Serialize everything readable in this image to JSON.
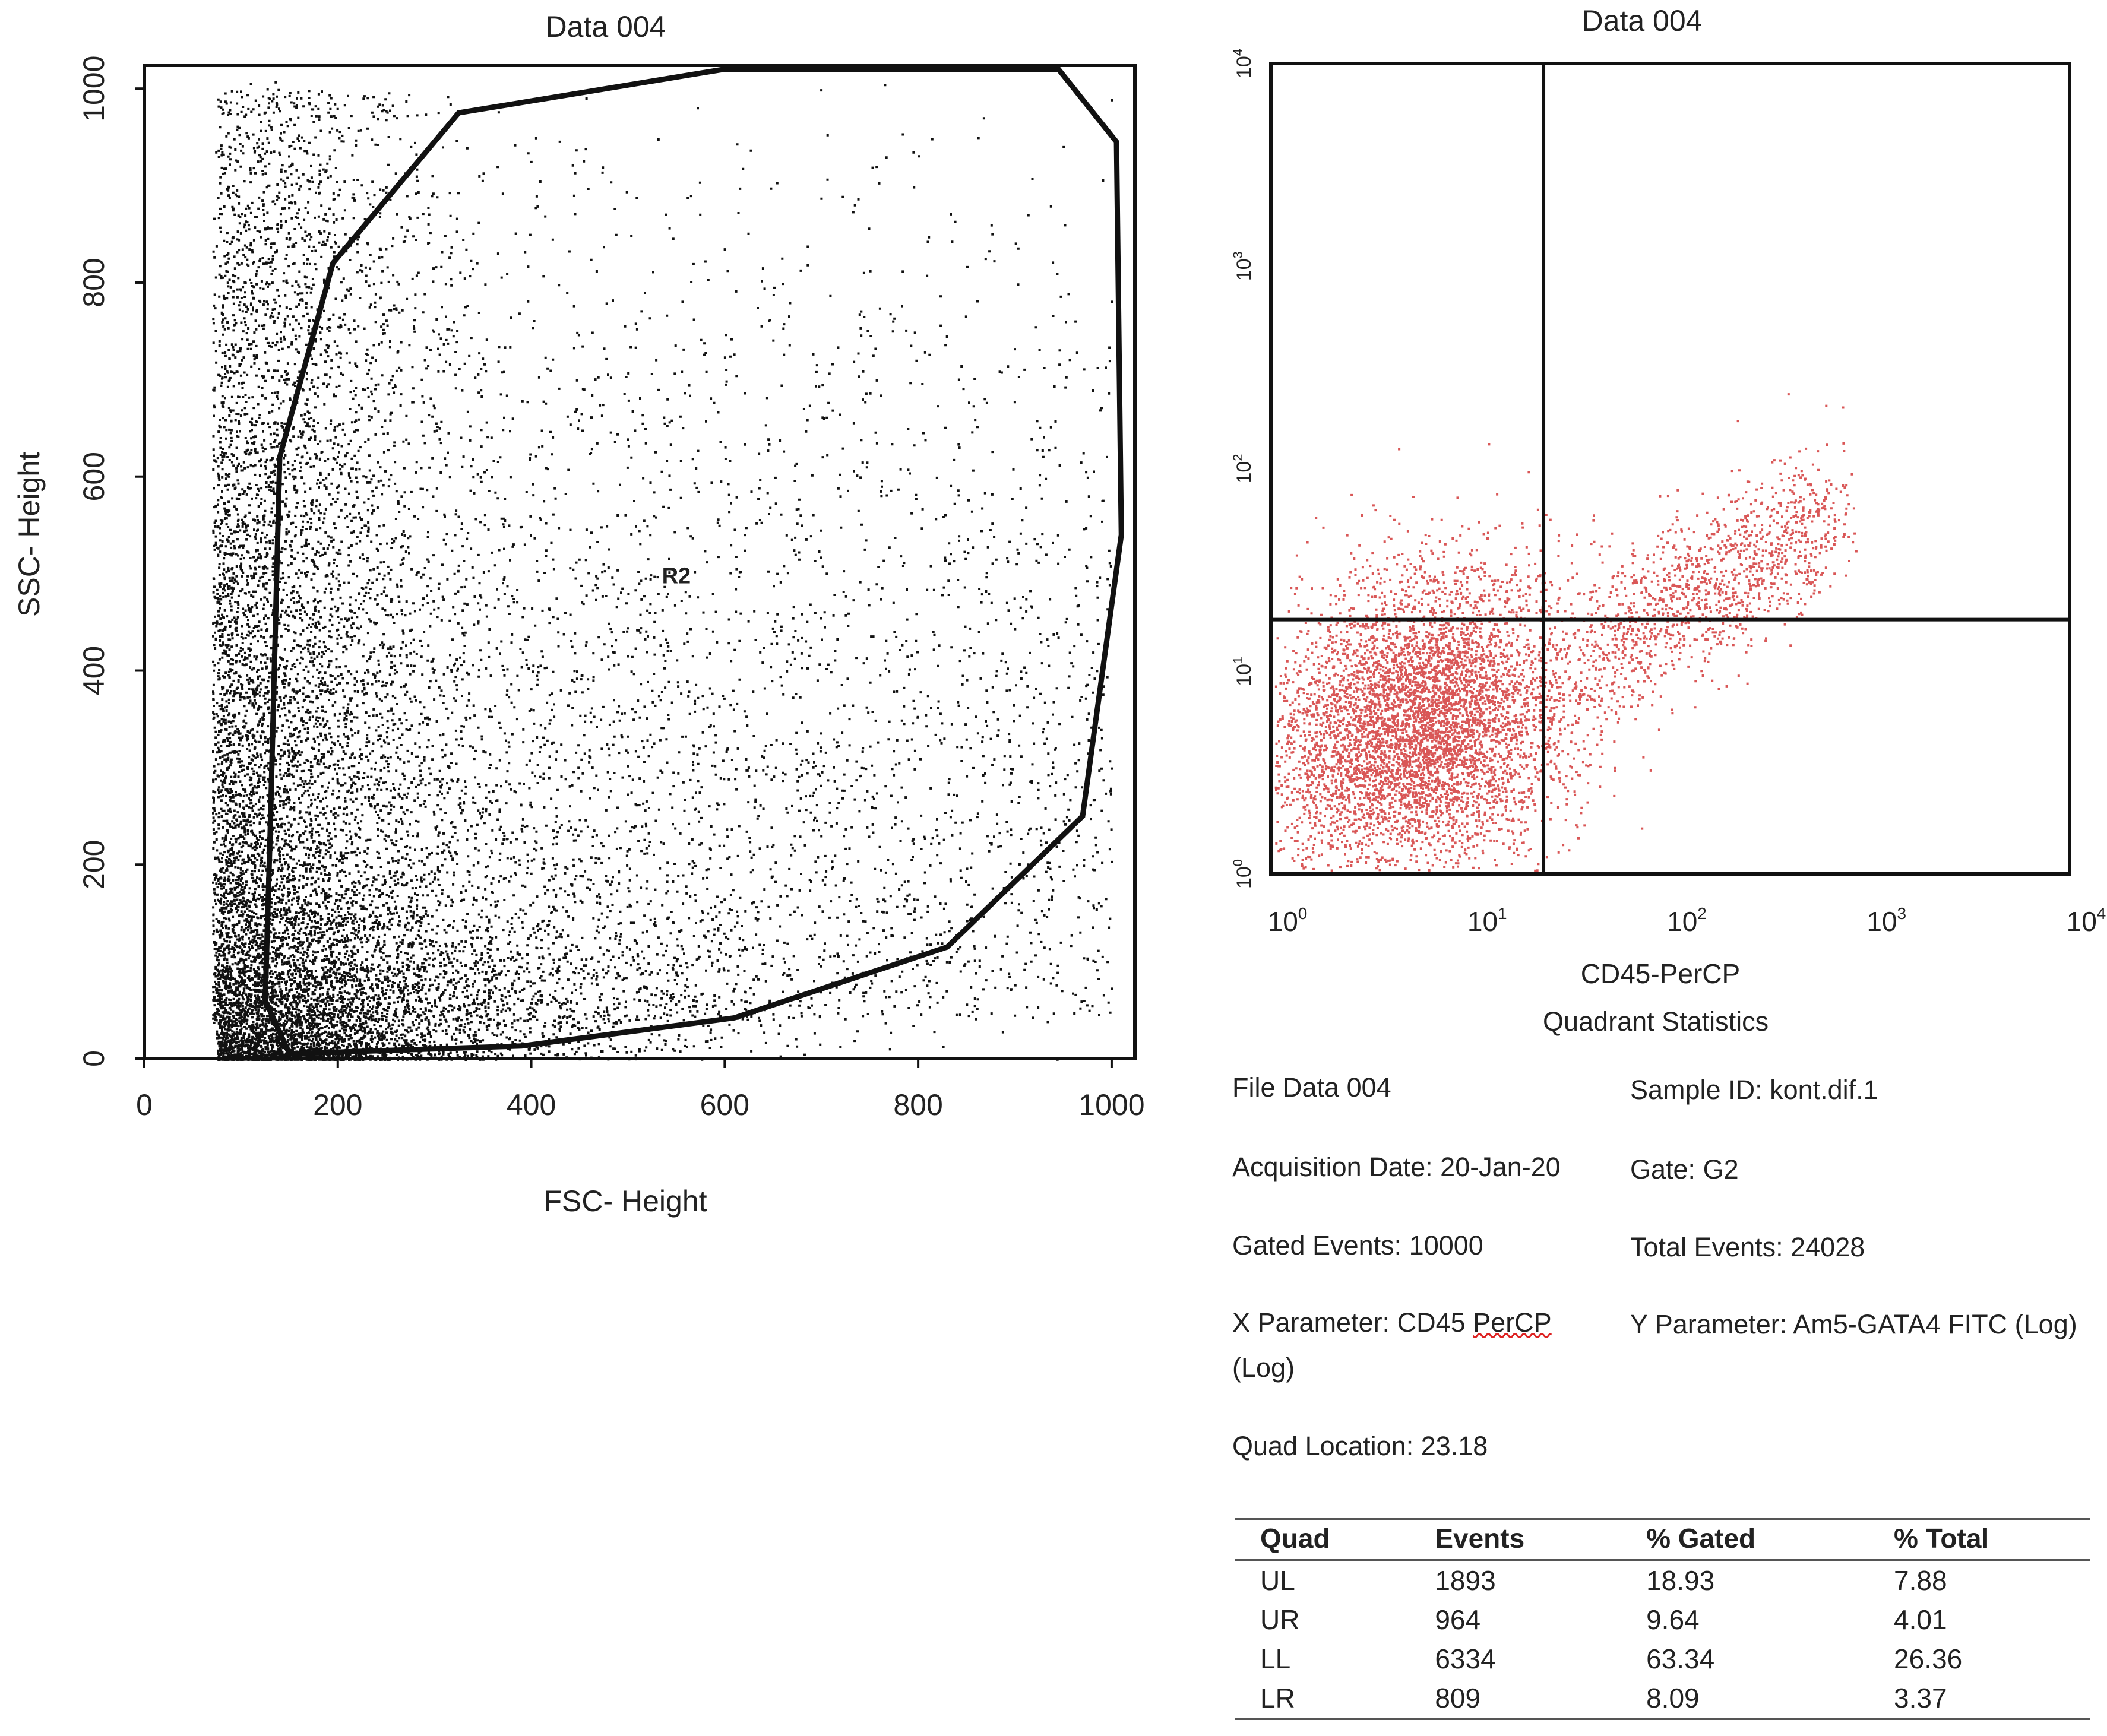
{
  "charts": [
    {
      "title": "Data 004",
      "xlabel": "FSC- Height",
      "ylabel": "SSC- Height"
    },
    {
      "title": "Data 004",
      "xlabel": "CD45-PerCP",
      "ylabel": ""
    }
  ],
  "chart_data": [
    {
      "type": "scatter",
      "title": "Data 004",
      "xlabel": "FSC- Height",
      "ylabel": "SSC- Height",
      "xlim": [
        0,
        1024
      ],
      "ylim": [
        0,
        1024
      ],
      "xticks": [
        "0",
        "200",
        "400",
        "600",
        "800",
        "1000"
      ],
      "yticks": [
        "0",
        "200",
        "400",
        "600",
        "800",
        "1000"
      ],
      "point_color": "#111111",
      "gate": {
        "name": "R2",
        "label_at": [
          550,
          490
        ],
        "polygon": [
          [
            130,
            230
          ],
          [
            140,
            620
          ],
          [
            195,
            820
          ],
          [
            325,
            975
          ],
          [
            600,
            1020
          ],
          [
            945,
            1020
          ],
          [
            1005,
            945
          ],
          [
            1010,
            540
          ],
          [
            970,
            250
          ],
          [
            830,
            115
          ],
          [
            610,
            42
          ],
          [
            390,
            13
          ],
          [
            150,
            5
          ],
          [
            125,
            60
          ]
        ]
      },
      "grid": false
    },
    {
      "type": "scatter",
      "title": "Data 004",
      "xlabel": "CD45-PerCP",
      "ylabel": "",
      "xscale": "log",
      "yscale": "log",
      "xlim": [
        1,
        10000
      ],
      "ylim": [
        1,
        10000
      ],
      "xticks": [
        "10^0",
        "10^1",
        "10^2",
        "10^3",
        "10^4"
      ],
      "yticks": [
        "10^0",
        "10^1",
        "10^2",
        "10^3",
        "10^4"
      ],
      "point_color": "#cc1f1f",
      "quadrant_lines": {
        "x": 23.18,
        "y": 18
      },
      "grid": false
    }
  ],
  "quad_stats": {
    "title": "Quadrant Statistics",
    "file": "File Data 004",
    "sample_id": "Sample ID: kont.dif.1",
    "acq_date": "Acquisition Date: 20-Jan-20",
    "gate": "Gate: G2",
    "gated_events": "Gated Events: 10000",
    "total_events": "Total Events: 24028",
    "x_param_a": "X Parameter: CD45 ",
    "x_param_b": "PerCP",
    "x_param_c": "(Log)",
    "y_param": "Y Parameter: Am5-GATA4 FITC (Log)",
    "quad_loc": "Quad Location: 23.18",
    "headers": [
      "Quad",
      "Events",
      "% Gated",
      "% Total"
    ],
    "rows": [
      [
        "UL",
        "1893",
        "18.93",
        "7.88"
      ],
      [
        "UR",
        "964",
        "9.64",
        "4.01"
      ],
      [
        "LL",
        "6334",
        "63.34",
        "26.36"
      ],
      [
        "LR",
        "809",
        "8.09",
        "3.37"
      ]
    ]
  }
}
